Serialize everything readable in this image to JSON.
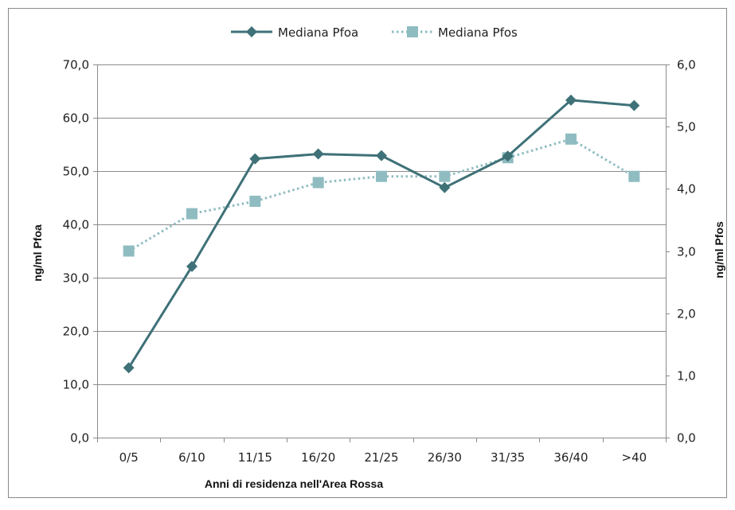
{
  "chart_data": {
    "type": "line",
    "categories": [
      "0/5",
      "6/10",
      "11/15",
      "16/20",
      "21/25",
      "26/30",
      "31/35",
      "36/40",
      ">40"
    ],
    "xlabel": "Anni di residenza nell'Area Rossa",
    "ylabel": "ng/ml Pfoa",
    "ylabel_right": "ng/ml Pfos",
    "ylim": [
      0,
      70
    ],
    "ylim_right": [
      0,
      6
    ],
    "y_ticks": [
      "0,0",
      "10,0",
      "20,0",
      "30,0",
      "40,0",
      "50,0",
      "60,0",
      "70,0"
    ],
    "y_ticks_right": [
      "0,0",
      "1,0",
      "2,0",
      "3,0",
      "4,0",
      "5,0",
      "6,0"
    ],
    "grid": true,
    "legend_position": "top",
    "series": [
      {
        "name": "Mediana Pfoa",
        "axis": "left",
        "values": [
          13.1,
          32.1,
          52.3,
          53.2,
          52.9,
          46.9,
          52.8,
          63.3,
          62.3
        ],
        "color": "#3f7178",
        "marker": "diamond",
        "line_style": "solid"
      },
      {
        "name": "Mediana Pfos",
        "axis": "right",
        "values": [
          3.0,
          3.6,
          3.8,
          4.1,
          4.2,
          4.2,
          4.5,
          4.8,
          4.2
        ],
        "color": "#8fbcc1",
        "marker": "square",
        "line_style": "dotted"
      }
    ]
  }
}
